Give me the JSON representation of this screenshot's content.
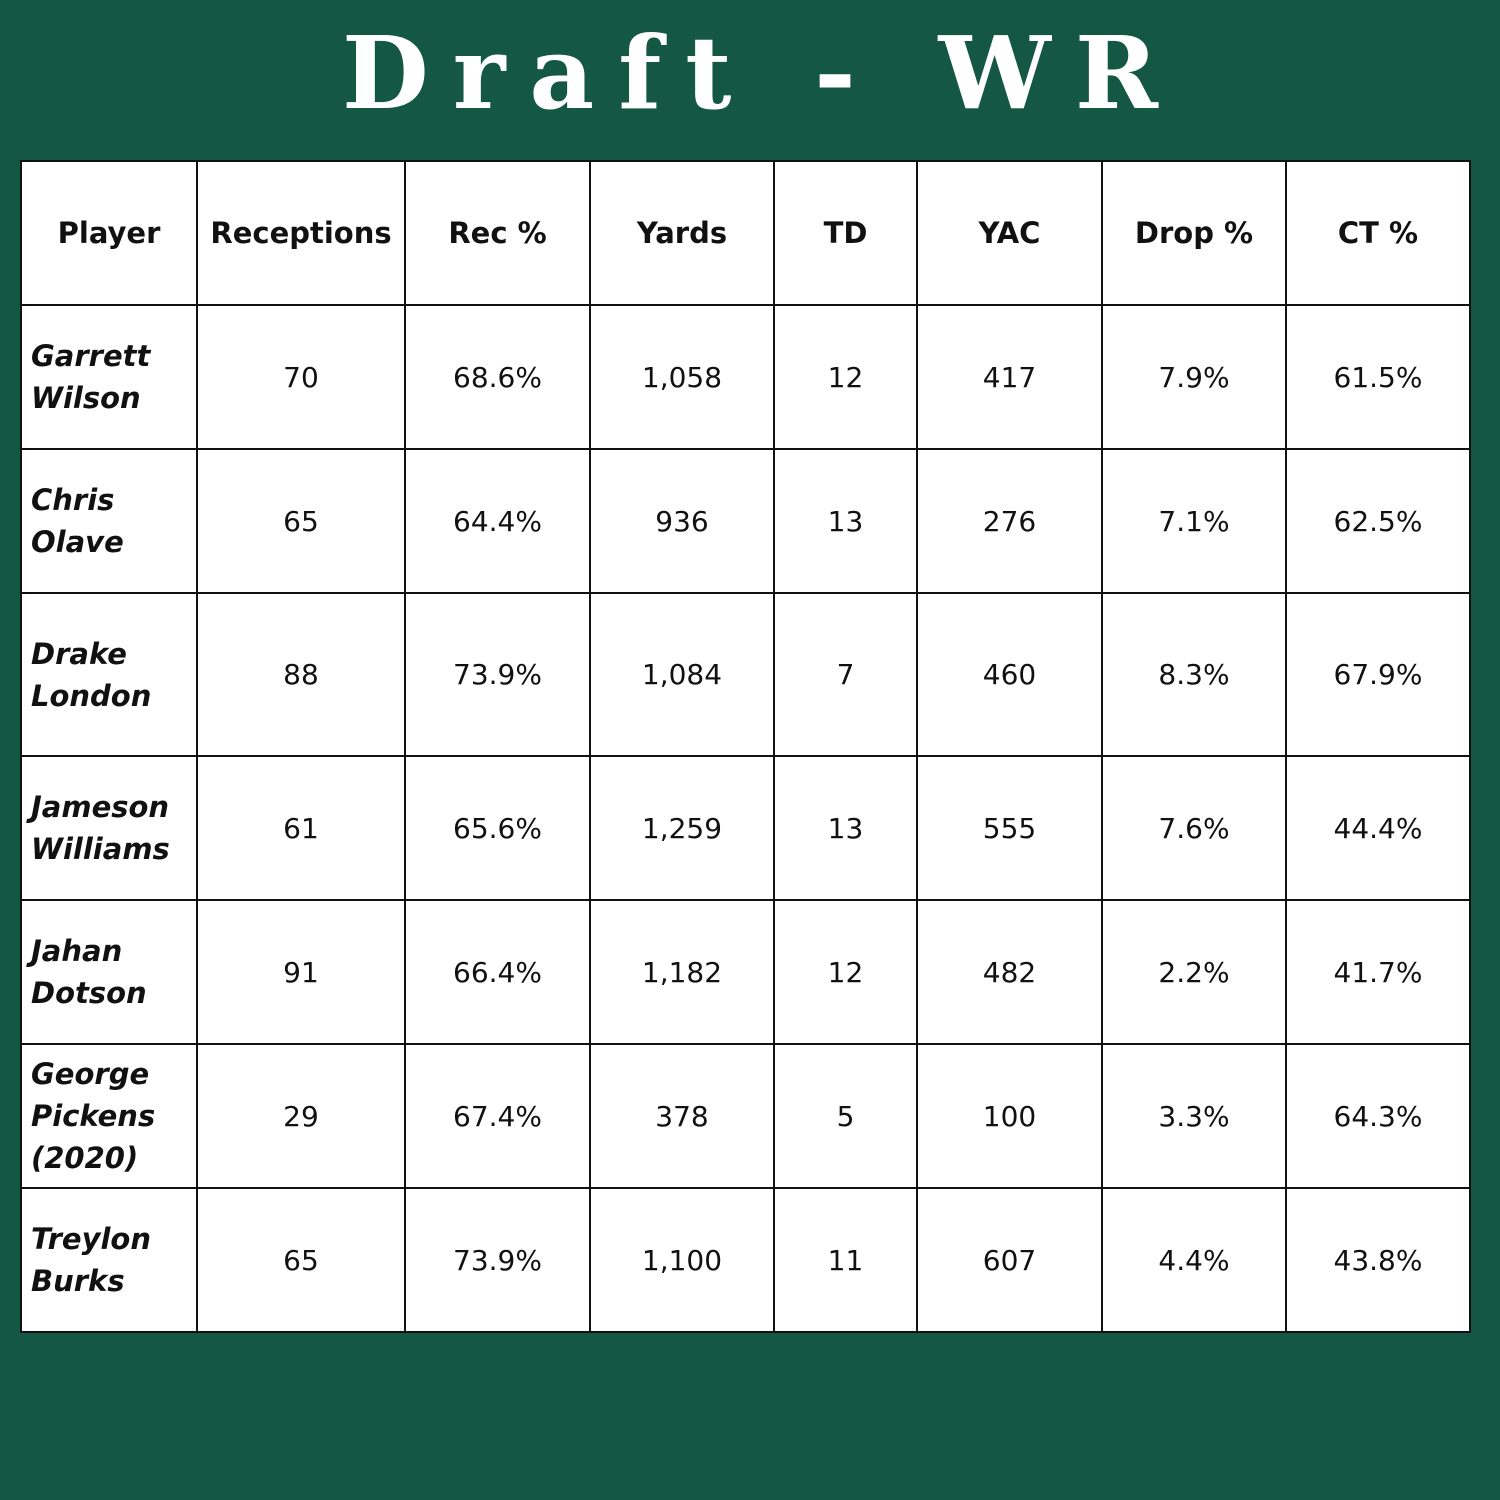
{
  "title": "Draft - WR",
  "chart_data": {
    "type": "table",
    "columns": [
      "Player",
      "Receptions",
      "Rec %",
      "Yards",
      "TD",
      "YAC",
      "Drop %",
      "CT %"
    ],
    "rows": [
      {
        "player": "Garrett Wilson",
        "receptions": "70",
        "rec_pct": "68.6%",
        "yards": "1,058",
        "td": "12",
        "yac": "417",
        "drop_pct": "7.9%",
        "ct_pct": "61.5%"
      },
      {
        "player": "Chris Olave",
        "receptions": "65",
        "rec_pct": "64.4%",
        "yards": "936",
        "td": "13",
        "yac": "276",
        "drop_pct": "7.1%",
        "ct_pct": "62.5%"
      },
      {
        "player": "Drake London",
        "receptions": "88",
        "rec_pct": "73.9%",
        "yards": "1,084",
        "td": "7",
        "yac": "460",
        "drop_pct": "8.3%",
        "ct_pct": "67.9%"
      },
      {
        "player": "Jameson Williams",
        "receptions": "61",
        "rec_pct": "65.6%",
        "yards": "1,259",
        "td": "13",
        "yac": "555",
        "drop_pct": "7.6%",
        "ct_pct": "44.4%"
      },
      {
        "player": "Jahan Dotson",
        "receptions": "91",
        "rec_pct": "66.4%",
        "yards": "1,182",
        "td": "12",
        "yac": "482",
        "drop_pct": "2.2%",
        "ct_pct": "41.7%"
      },
      {
        "player": "George Pickens (2020)",
        "receptions": "29",
        "rec_pct": "67.4%",
        "yards": "378",
        "td": "5",
        "yac": "100",
        "drop_pct": "3.3%",
        "ct_pct": "64.3%"
      },
      {
        "player": "Treylon Burks",
        "receptions": "65",
        "rec_pct": "73.9%",
        "yards": "1,100",
        "td": "11",
        "yac": "607",
        "drop_pct": "4.4%",
        "ct_pct": "43.8%"
      }
    ]
  },
  "colors": {
    "background": "#145843",
    "table_background": "#ffffff",
    "text": "#111111"
  }
}
